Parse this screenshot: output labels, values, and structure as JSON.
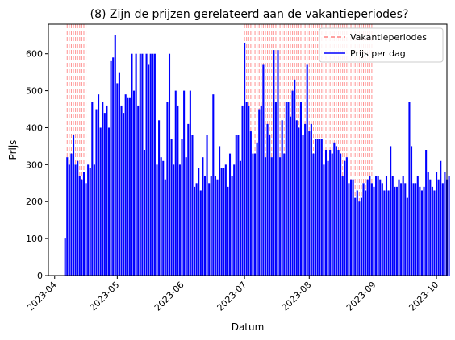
{
  "chart_data": {
    "type": "bar",
    "title": "(8) Zijn de prijzen gerelateerd aan de vakantieperiodes?",
    "xlabel": "Datum",
    "ylabel": "Prijs",
    "x_domain": [
      "2023-03-29",
      "2023-10-06"
    ],
    "ylim": [
      0,
      680
    ],
    "y_ticks": [
      0,
      100,
      200,
      300,
      400,
      500,
      600
    ],
    "x_ticks": [
      {
        "date": "2023-04-01",
        "label": "2023-04"
      },
      {
        "date": "2023-05-01",
        "label": "2023-05"
      },
      {
        "date": "2023-06-01",
        "label": "2023-06"
      },
      {
        "date": "2023-07-01",
        "label": "2023-07"
      },
      {
        "date": "2023-08-01",
        "label": "2023-08"
      },
      {
        "date": "2023-09-01",
        "label": "2023-09"
      },
      {
        "date": "2023-10-01",
        "label": "2023-10"
      }
    ],
    "legend": {
      "placement": "upper right",
      "entries": [
        {
          "label": "Vakantieperiodes",
          "style": "dashed",
          "color": "#ff8080"
        },
        {
          "label": "Prijs per dag",
          "style": "solid",
          "color": "#0000ff"
        }
      ]
    },
    "holiday_color": "#ff8080",
    "bar_color": "#0000ff",
    "holiday_periods": [
      {
        "start": "2023-04-07",
        "end": "2023-04-16"
      },
      {
        "start": "2023-07-01",
        "end": "2023-08-31"
      }
    ],
    "series": [
      {
        "name": "Prijs per dag",
        "start_date": "2023-04-06",
        "values": [
          100,
          320,
          300,
          330,
          380,
          300,
          310,
          270,
          260,
          280,
          250,
          300,
          290,
          470,
          300,
          450,
          490,
          400,
          470,
          440,
          460,
          400,
          580,
          590,
          650,
          520,
          550,
          460,
          440,
          490,
          480,
          480,
          600,
          500,
          600,
          460,
          600,
          600,
          340,
          600,
          570,
          600,
          600,
          600,
          300,
          420,
          320,
          310,
          260,
          470,
          600,
          370,
          300,
          500,
          460,
          300,
          370,
          500,
          320,
          410,
          500,
          380,
          240,
          250,
          290,
          230,
          320,
          270,
          380,
          250,
          270,
          490,
          270,
          260,
          350,
          290,
          290,
          300,
          240,
          330,
          270,
          300,
          380,
          380,
          310,
          460,
          630,
          470,
          460,
          390,
          330,
          330,
          360,
          450,
          460,
          570,
          320,
          410,
          380,
          320,
          610,
          470,
          610,
          320,
          420,
          330,
          470,
          470,
          430,
          500,
          530,
          420,
          400,
          470,
          380,
          410,
          570,
          390,
          410,
          330,
          370,
          370,
          370,
          370,
          300,
          340,
          310,
          340,
          330,
          360,
          350,
          340,
          330,
          270,
          310,
          320,
          250,
          260,
          260,
          210,
          230,
          200,
          210,
          250,
          230,
          260,
          270,
          250,
          240,
          270,
          270,
          260,
          250,
          230,
          270,
          230,
          350,
          270,
          240,
          240,
          260,
          250,
          270,
          250,
          210,
          470,
          350,
          250,
          250,
          270,
          240,
          230,
          240,
          340,
          280,
          260,
          240,
          230,
          280,
          260,
          310,
          250,
          280,
          260,
          270
        ]
      }
    ]
  }
}
